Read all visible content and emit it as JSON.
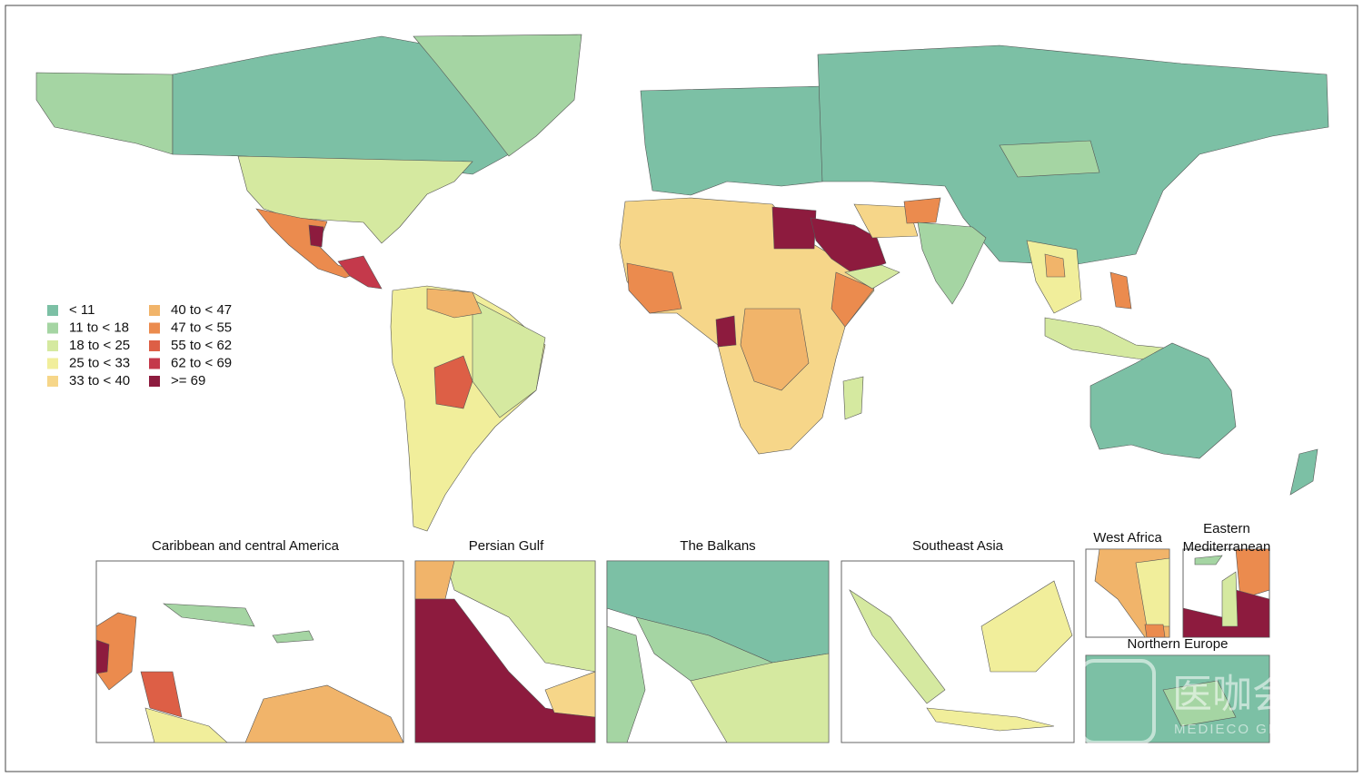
{
  "legend": {
    "items": [
      {
        "label": "< 11",
        "color": "#7cc0a5"
      },
      {
        "label": "11 to < 18",
        "color": "#a5d5a3"
      },
      {
        "label": "18 to < 25",
        "color": "#d5e9a0"
      },
      {
        "label": "25 to < 33",
        "color": "#f1ee9b"
      },
      {
        "label": "33 to < 40",
        "color": "#f6d689"
      },
      {
        "label": "40 to < 47",
        "color": "#f1b46a"
      },
      {
        "label": "47 to < 55",
        "color": "#eb8b4e"
      },
      {
        "label": "55 to < 62",
        "color": "#dd5f46"
      },
      {
        "label": "62 to < 69",
        "color": "#c4394b"
      },
      {
        "label": ">= 69",
        "color": "#8d1b3e"
      }
    ]
  },
  "insets": [
    {
      "title": "Caribbean and central America"
    },
    {
      "title": "Persian Gulf"
    },
    {
      "title": "The Balkans"
    },
    {
      "title": "Southeast Asia"
    },
    {
      "title": "West Africa"
    },
    {
      "title": "Eastern Mediterranean"
    },
    {
      "title": "Northern Europe"
    }
  ],
  "watermark": {
    "brand": "医咖会",
    "sub": "MEDIECO GROUP"
  }
}
